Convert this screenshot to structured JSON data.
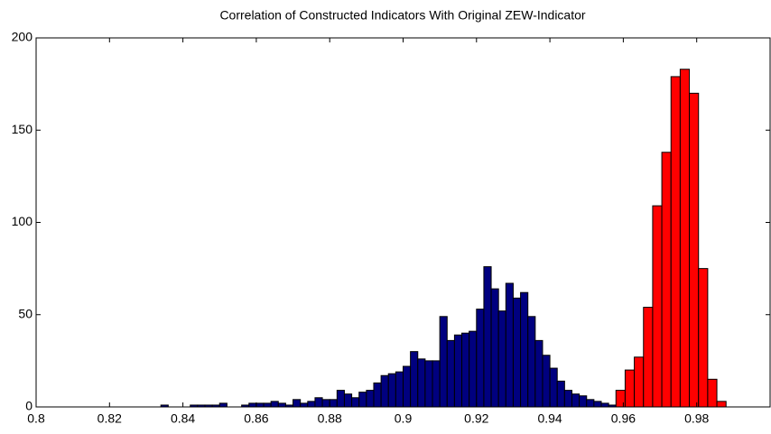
{
  "chart_data": {
    "type": "histogram",
    "title": "Correlation of Constructed Indicators With Original ZEW-Indicator",
    "xlim": [
      0.8,
      1.0
    ],
    "ylim": [
      0,
      200
    ],
    "xticks": [
      0.8,
      0.82,
      0.84,
      0.86,
      0.88,
      0.9,
      0.92,
      0.94,
      0.96,
      0.98
    ],
    "yticks": [
      0,
      50,
      100,
      150,
      200
    ],
    "series": [
      {
        "color": "#00007f",
        "bins": [
          0.834,
          0.836,
          0.838,
          0.84,
          0.842,
          0.844,
          0.846,
          0.848,
          0.85,
          0.852,
          0.854,
          0.856,
          0.858,
          0.86,
          0.862,
          0.864,
          0.866,
          0.868,
          0.87,
          0.872,
          0.874,
          0.876,
          0.878,
          0.88,
          0.882,
          0.884,
          0.886,
          0.888,
          0.89,
          0.892,
          0.894,
          0.896,
          0.898,
          0.9,
          0.902,
          0.904,
          0.906,
          0.908,
          0.91,
          0.912,
          0.914,
          0.916,
          0.918,
          0.92,
          0.922,
          0.924,
          0.926,
          0.928,
          0.93,
          0.932,
          0.934,
          0.936,
          0.938,
          0.94,
          0.942,
          0.944,
          0.946,
          0.948,
          0.95,
          0.952,
          0.954,
          0.956,
          0.958,
          0.96,
          0.962
        ],
        "values": [
          1,
          0,
          0,
          0,
          1,
          1,
          1,
          1,
          2,
          0,
          0,
          1,
          2,
          2,
          2,
          3,
          2,
          1,
          4,
          2,
          3,
          5,
          4,
          4,
          9,
          7,
          5,
          8,
          9,
          13,
          17,
          18,
          19,
          22,
          30,
          26,
          25,
          25,
          49,
          36,
          39,
          40,
          41,
          53,
          76,
          64,
          52,
          67,
          59,
          62,
          49,
          36,
          28,
          21,
          14,
          9,
          7,
          6,
          4,
          3,
          2,
          1,
          1,
          0
        ]
      },
      {
        "color": "#ff0000",
        "bins": [
          0.958,
          0.9605,
          0.963,
          0.9655,
          0.968,
          0.9705,
          0.973,
          0.9755,
          0.978,
          0.9805,
          0.983,
          0.9855,
          0.988
        ],
        "values": [
          9,
          20,
          27,
          54,
          109,
          138,
          179,
          183,
          170,
          75,
          15,
          3
        ]
      }
    ]
  }
}
